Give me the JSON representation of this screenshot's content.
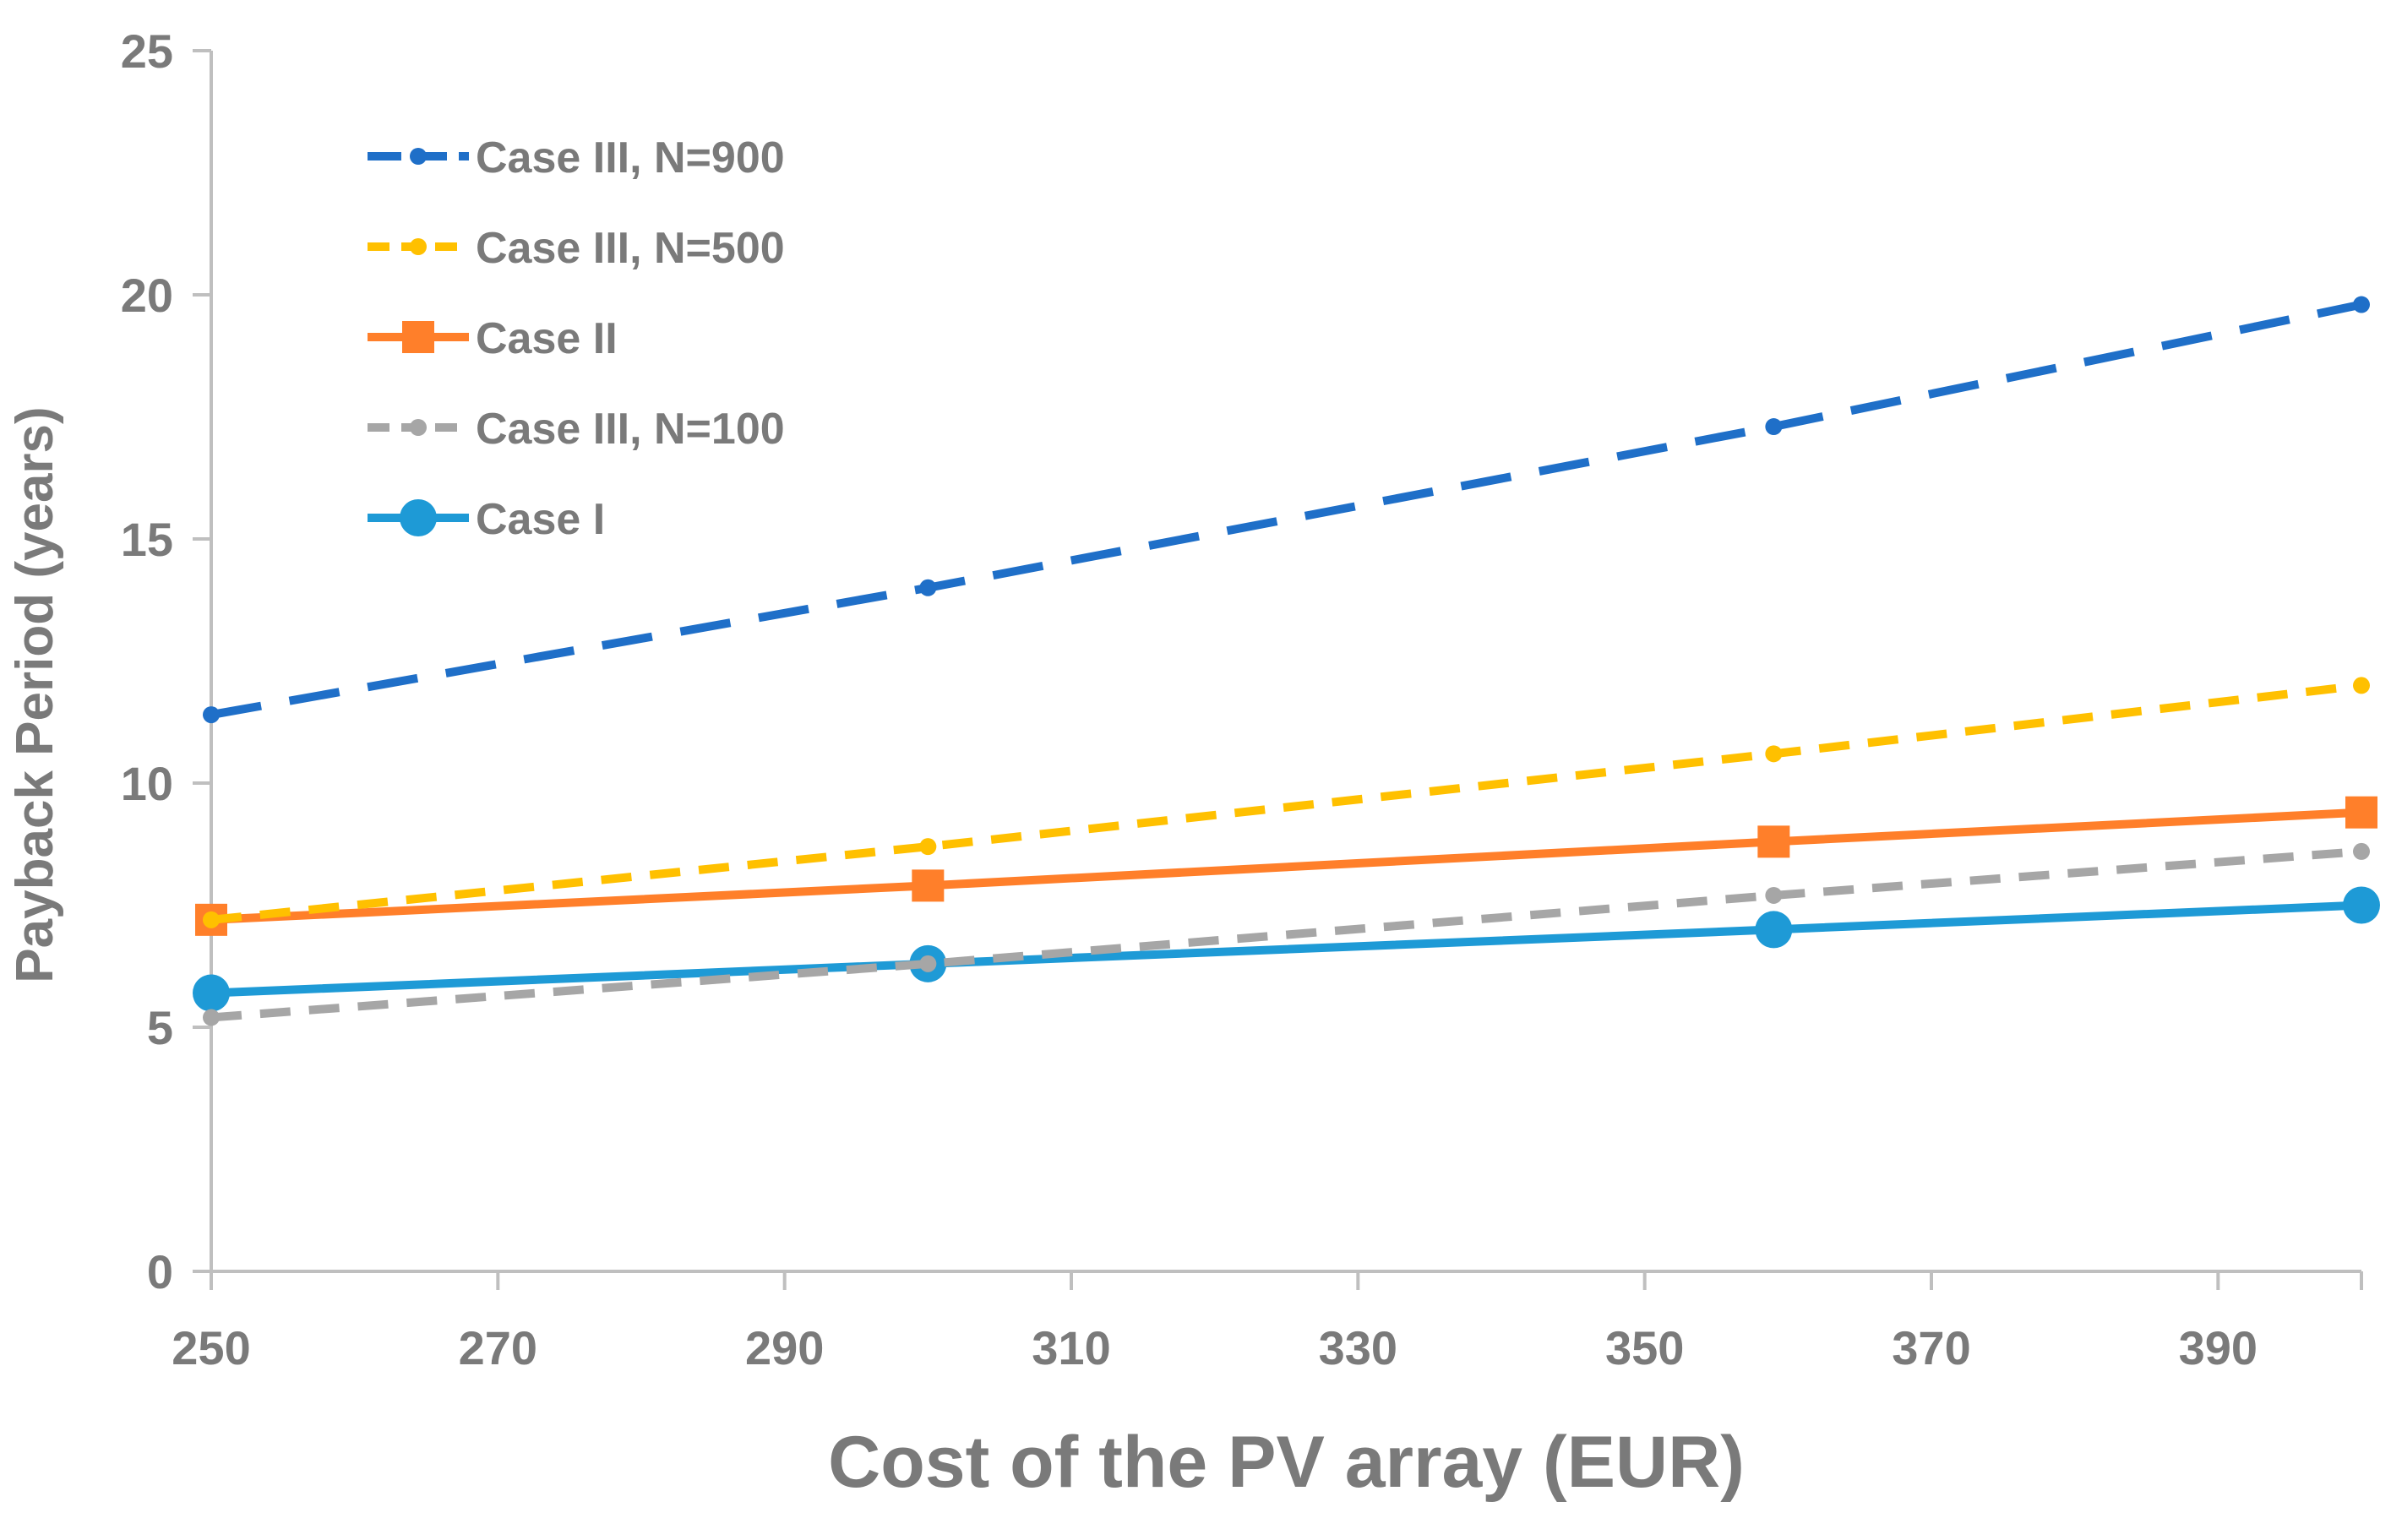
{
  "chart_data": {
    "type": "line",
    "title": "",
    "xlabel": "Cost of the PV array (EUR)",
    "ylabel": "Payback Period (years)",
    "xlim": [
      250,
      400
    ],
    "ylim": [
      0,
      25
    ],
    "xticks": [
      250,
      270,
      290,
      310,
      330,
      350,
      370,
      390
    ],
    "yticks": [
      0,
      5,
      10,
      15,
      20,
      25
    ],
    "grid": false,
    "legend_position": "top-left",
    "series": [
      {
        "name": "Case III, N=900",
        "color": "#1f6fc8",
        "dash": "long-dash",
        "marker": "small-circle",
        "x": [
          250,
          300,
          359,
          400
        ],
        "y": [
          11.4,
          14.0,
          17.3,
          19.8
        ]
      },
      {
        "name": "Case III, N=500",
        "color": "#ffc000",
        "dash": "dash",
        "marker": "small-circle",
        "x": [
          250,
          300,
          359,
          400
        ],
        "y": [
          7.2,
          8.7,
          10.6,
          12.0
        ]
      },
      {
        "name": "Case II",
        "color": "#ff7f2a",
        "dash": "solid",
        "marker": "square",
        "x": [
          250,
          300,
          359,
          400
        ],
        "y": [
          7.2,
          7.9,
          8.8,
          9.4
        ]
      },
      {
        "name": "Case III, N=100",
        "color": "#a6a6a6",
        "dash": "dash",
        "marker": "small-circle",
        "x": [
          250,
          300,
          359,
          400
        ],
        "y": [
          5.2,
          6.3,
          7.7,
          8.6
        ]
      },
      {
        "name": "Case I",
        "color": "#1e9ad6",
        "dash": "solid",
        "marker": "large-circle",
        "x": [
          250,
          300,
          359,
          400
        ],
        "y": [
          5.7,
          6.3,
          7.0,
          7.5
        ]
      }
    ]
  }
}
